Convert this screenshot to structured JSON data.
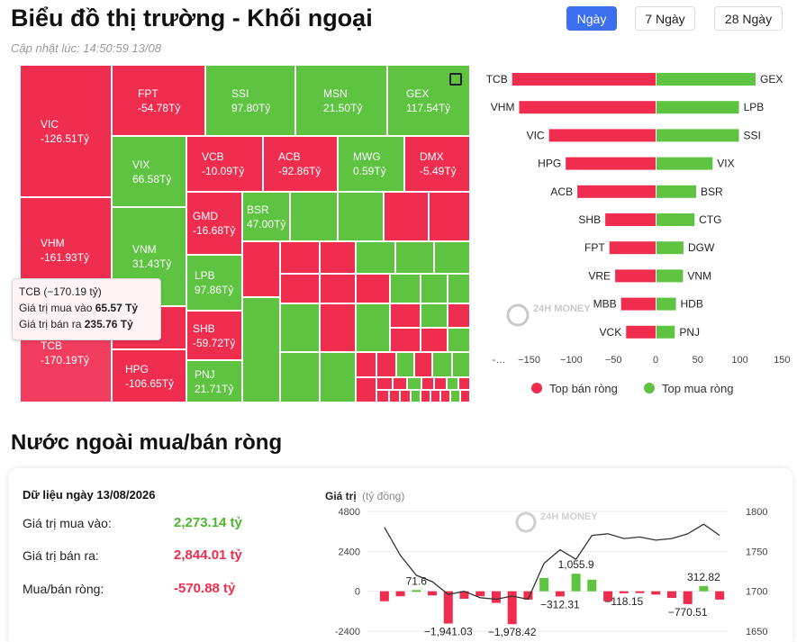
{
  "page": {
    "title": "Biểu đồ thị trường - Khối ngoại",
    "updated": "Cập nhật lúc: 14:50:59 13/08",
    "tabs": [
      "Ngày",
      "7 Ngày",
      "28 Ngày"
    ],
    "active_tab": "Ngày",
    "watermark": "24H MONEY",
    "colors": {
      "negative": "#ef2d4f",
      "positive": "#5ec341",
      "accent": "#3b6ff0"
    }
  },
  "treemap": {
    "labeled_tiles": [
      {
        "code": "VIC",
        "value": "-126.51Tỷ"
      },
      {
        "code": "VHM",
        "value": "-161.93Tỷ"
      },
      {
        "code": "TCB",
        "value": "-170.19Tỷ"
      },
      {
        "code": "FPT",
        "value": "-54.78Tỷ"
      },
      {
        "code": "SSI",
        "value": "97.80Tỷ"
      },
      {
        "code": "MSN",
        "value": "21.50Tỷ"
      },
      {
        "code": "GEX",
        "value": "117.54Tỷ"
      },
      {
        "code": "VIX",
        "value": "66.58Tỷ"
      },
      {
        "code": "VCB",
        "value": "-10.09Tỷ"
      },
      {
        "code": "ACB",
        "value": "-92.86Tỷ"
      },
      {
        "code": "MWG",
        "value": "0.59Tỷ"
      },
      {
        "code": "DMX",
        "value": "-5.49Tỷ"
      },
      {
        "code": "VNM",
        "value": "31.43Tỷ"
      },
      {
        "code": "GMD",
        "value": "-16.68Tỷ"
      },
      {
        "code": "BSR",
        "value": "47.00Tỷ"
      },
      {
        "code": "LPB",
        "value": "97.86Tỷ"
      },
      {
        "code": "SHB",
        "value": "-59.72Tỷ"
      },
      {
        "code": "HPG",
        "value": "-106.65Tỷ"
      },
      {
        "code": "PNJ",
        "value": "21.71Tỷ"
      }
    ],
    "tooltip": {
      "title": "TCB (−170.19 tỷ)",
      "buy_label": "Giá trị mua vào",
      "buy_value": "65.57 Tỷ",
      "sell_label": "Giá trị bán ra",
      "sell_value": "235.76 Tỷ"
    }
  },
  "top_chart": {
    "chart_data": {
      "type": "bar",
      "sellers": [
        {
          "code": "TCB",
          "value": -170.19
        },
        {
          "code": "VHM",
          "value": -161.93
        },
        {
          "code": "VIC",
          "value": -126.51
        },
        {
          "code": "HPG",
          "value": -106.65
        },
        {
          "code": "ACB",
          "value": -92.86
        },
        {
          "code": "SHB",
          "value": -59.72
        },
        {
          "code": "FPT",
          "value": -54.78
        },
        {
          "code": "VRE",
          "value": -48
        },
        {
          "code": "MBB",
          "value": -41
        },
        {
          "code": "VCK",
          "value": -35
        }
      ],
      "buyers": [
        {
          "code": "GEX",
          "value": 117.54
        },
        {
          "code": "LPB",
          "value": 97.86
        },
        {
          "code": "SSI",
          "value": 97.8
        },
        {
          "code": "VIX",
          "value": 66.58
        },
        {
          "code": "BSR",
          "value": 47.0
        },
        {
          "code": "CTG",
          "value": 45
        },
        {
          "code": "DGW",
          "value": 32
        },
        {
          "code": "VNM",
          "value": 31.43
        },
        {
          "code": "HDB",
          "value": 23
        },
        {
          "code": "PNJ",
          "value": 21.71
        }
      ],
      "x_ticks": [
        "-…",
        "−150",
        "−100",
        "−50",
        "0",
        "50",
        "100",
        "150"
      ],
      "legend": [
        {
          "label": "Top bán ròng",
          "color": "#ef2d4f"
        },
        {
          "label": "Top mua ròng",
          "color": "#5ec341"
        }
      ]
    }
  },
  "net": {
    "heading": "Nước ngoài mua/bán ròng",
    "data_title": "Dữ liệu ngày 13/08/2026",
    "rows": [
      {
        "label": "Giá trị mua vào:",
        "value": "2,273.14 tỷ",
        "tone": "green"
      },
      {
        "label": "Giá trị bán ra:",
        "value": "2,844.01 tỷ",
        "tone": "red"
      },
      {
        "label": "Mua/bán ròng:",
        "value": "-570.88 tỷ",
        "tone": "red"
      }
    ],
    "chart_data": {
      "type": "bar",
      "ylabel": "Giá trị",
      "yunit": "(tỷ đồng)",
      "y_left_ticks": [
        "4800",
        "2400",
        "0",
        "-2400"
      ],
      "y_right_ticks": [
        "1800",
        "1750",
        "1700",
        "1650"
      ],
      "ylim": [
        -2400,
        4800
      ],
      "y2lim": [
        1650,
        1800
      ],
      "values": [
        -600,
        -300,
        71.6,
        -250,
        -1941.03,
        -450,
        -300,
        -700,
        -1978.42,
        -500,
        800,
        -312.31,
        1055.9,
        700,
        -600,
        -118.15,
        -50,
        -200,
        -400,
        -770.51,
        312.82,
        -500
      ],
      "data_labels": [
        {
          "index": 2,
          "text": "71.6"
        },
        {
          "index": 4,
          "text": "−1,941.03"
        },
        {
          "index": 8,
          "text": "−1,978.42"
        },
        {
          "index": 11,
          "text": "−312.31"
        },
        {
          "index": 12,
          "text": "1,055.9"
        },
        {
          "index": 15,
          "text": "−118.15"
        },
        {
          "index": 19,
          "text": "−770.51"
        },
        {
          "index": 20,
          "text": "312.82"
        }
      ],
      "index_line": [
        1780,
        1745,
        1720,
        1712,
        1696,
        1700,
        1692,
        1690,
        1694,
        1690,
        1735,
        1752,
        1740,
        1770,
        1772,
        1766,
        1768,
        1764,
        1766,
        1772,
        1784,
        1770
      ]
    }
  }
}
